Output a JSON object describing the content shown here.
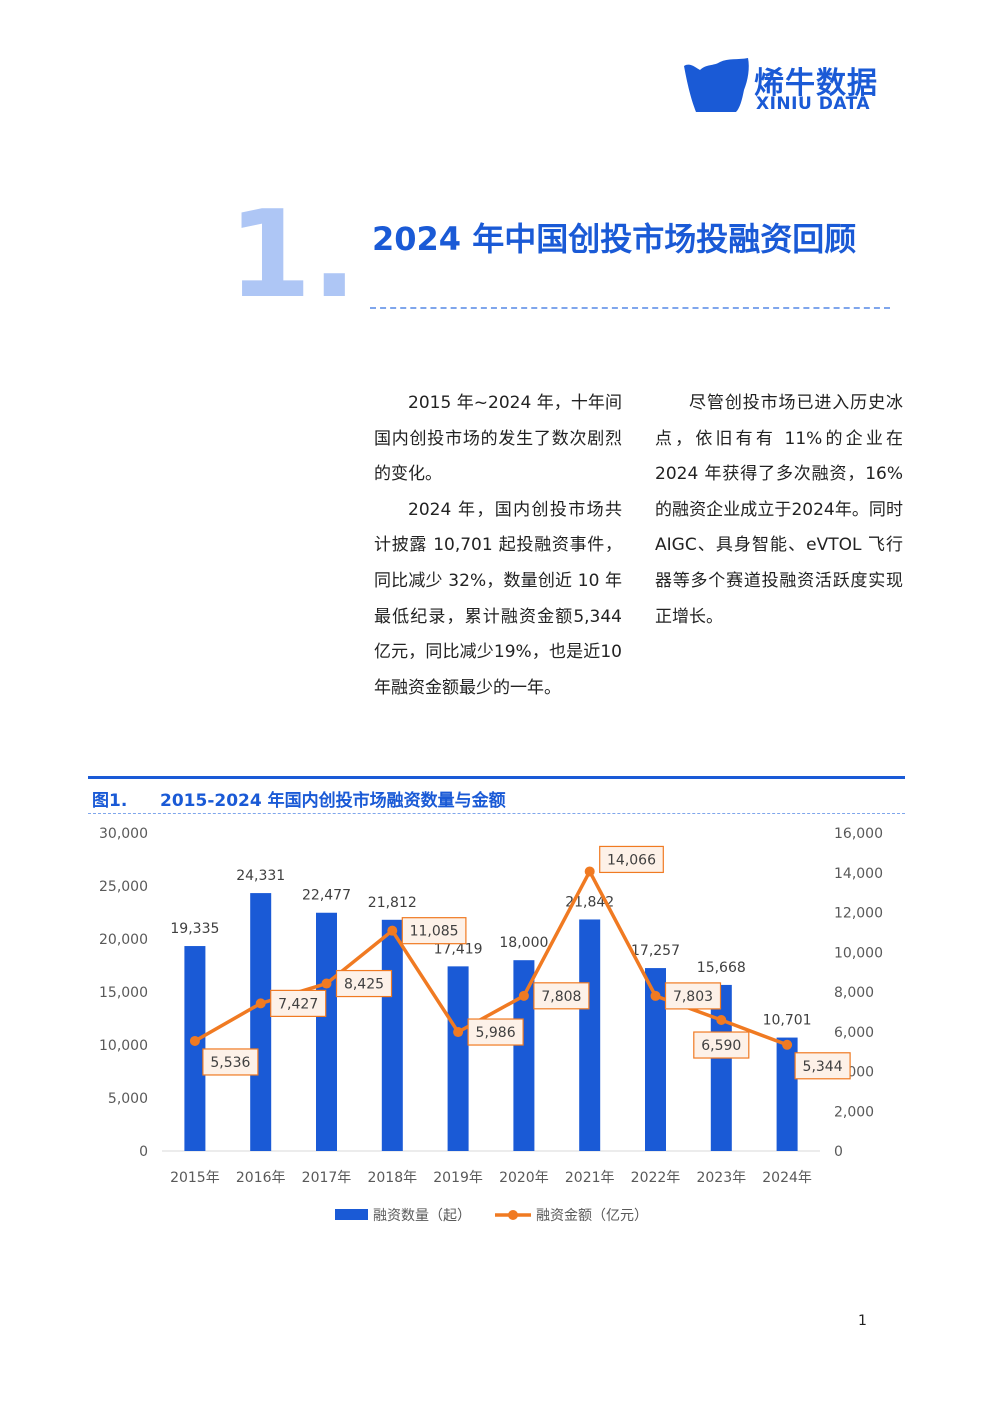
{
  "brand": {
    "name_cn": "烯牛数据",
    "name_en": "XINIU DATA",
    "color": "#1a5ad6"
  },
  "section": {
    "number": "1.",
    "title": "2024 年中国创投市场投融资回顾"
  },
  "body": {
    "left_paragraphs": [
      "2015 年~2024 年，十年间国内创投市场的发生了数次剧烈的变化。",
      "2024 年，国内创投市场共计披露 10,701 起投融资事件，同比减少 32%，数量创近 10 年最低纪录，累计融资金额5,344亿元，同比减少19%，也是近10年融资金额最少的一年。"
    ],
    "right_paragraphs": [
      "尽管创投市场已进入历史冰点，依旧有有 11%的企业在 2024 年获得了多次融资，16%的融资企业成立于2024年。同时 AIGC、具身智能、eVTOL 飞行器等多个赛道投融资活跃度实现正增长。"
    ]
  },
  "figure": {
    "label": "图1.",
    "title": "2015-2024 年国内创投市场融资数量与金额"
  },
  "chart_data": {
    "type": "bar",
    "categories": [
      "2015年",
      "2016年",
      "2017年",
      "2018年",
      "2019年",
      "2020年",
      "2021年",
      "2022年",
      "2023年",
      "2024年"
    ],
    "series": [
      {
        "name": "融资数量（起）",
        "type": "bar",
        "axis": "left",
        "color": "#1a5ad6",
        "values": [
          19335,
          24331,
          22477,
          21812,
          17419,
          18000,
          21842,
          17257,
          15668,
          10701
        ],
        "labels": [
          "19,335",
          "24,331",
          "22,477",
          "21,812",
          "17,419",
          "18,000",
          "21,842",
          "17,257",
          "15,668",
          "10,701"
        ]
      },
      {
        "name": "融资金额（亿元）",
        "type": "line",
        "axis": "right",
        "color": "#f07a22",
        "values": [
          5536,
          7427,
          8425,
          11085,
          5986,
          7808,
          14066,
          7803,
          6590,
          5344
        ],
        "labels": [
          "5,536",
          "7,427",
          "8,425",
          "11,085",
          "5,986",
          "7,808",
          "14,066",
          "7,803",
          "6,590",
          "5,344"
        ]
      }
    ],
    "y_left": {
      "min": 0,
      "max": 30000,
      "ticks": [
        "0",
        "5,000",
        "10,000",
        "15,000",
        "20,000",
        "25,000",
        "30,000"
      ]
    },
    "y_right": {
      "min": 0,
      "max": 16000,
      "ticks": [
        "0",
        "2,000",
        "4,000",
        "6,000",
        "8,000",
        "10,000",
        "12,000",
        "14,000",
        "16,000"
      ]
    },
    "grid": false,
    "legend": "bottom"
  },
  "page_number": "1"
}
